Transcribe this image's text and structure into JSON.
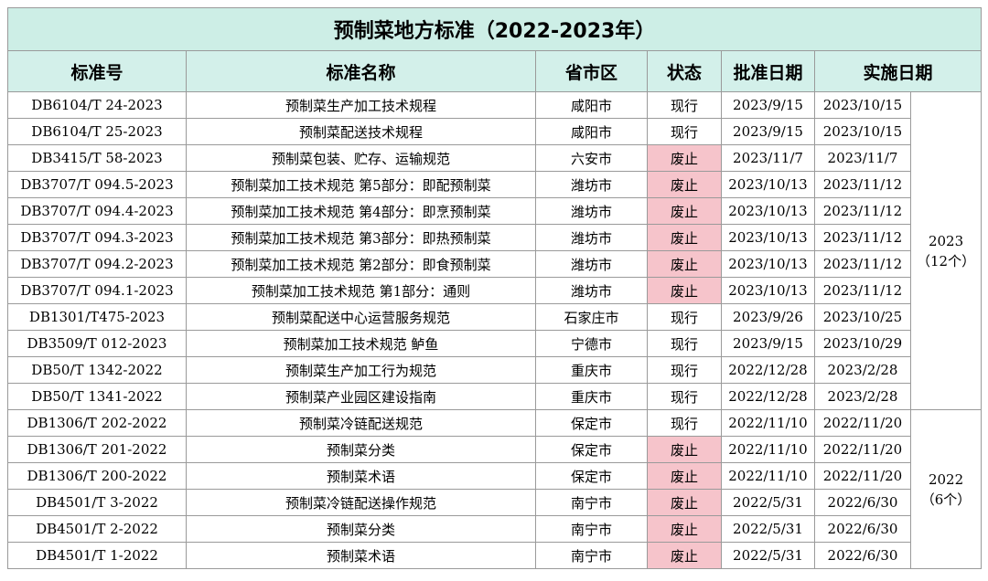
{
  "title": "预制菜地方标准（2022-2023年）",
  "table": {
    "headers": [
      "标准号",
      "标准名称",
      "省市区",
      "状态",
      "批准日期",
      "实施日期"
    ],
    "status_colors": {
      "废止": "#f6c4cb"
    },
    "rows": [
      [
        "DB6104/T 24-2023",
        "预制菜生产加工技术规程",
        "咸阳市",
        "现行",
        "2023/9/15",
        "2023/10/15"
      ],
      [
        "DB6104/T 25-2023",
        "预制菜配送技术规程",
        "咸阳市",
        "现行",
        "2023/9/15",
        "2023/10/15"
      ],
      [
        "DB3415/T 58-2023",
        "预制菜包装、贮存、运输规范",
        "六安市",
        "废止",
        "2023/11/7",
        "2023/11/7"
      ],
      [
        "DB3707/T 094.5-2023",
        "预制菜加工技术规范 第5部分：即配预制菜",
        "潍坊市",
        "废止",
        "2023/10/13",
        "2023/11/12"
      ],
      [
        "DB3707/T 094.4-2023",
        "预制菜加工技术规范 第4部分：即烹预制菜",
        "潍坊市",
        "废止",
        "2023/10/13",
        "2023/11/12"
      ],
      [
        "DB3707/T 094.3-2023",
        "预制菜加工技术规范 第3部分：即热预制菜",
        "潍坊市",
        "废止",
        "2023/10/13",
        "2023/11/12"
      ],
      [
        "DB3707/T 094.2-2023",
        "预制菜加工技术规范 第2部分：即食预制菜",
        "潍坊市",
        "废止",
        "2023/10/13",
        "2023/11/12"
      ],
      [
        "DB3707/T 094.1-2023",
        "预制菜加工技术规范 第1部分：通则",
        "潍坊市",
        "废止",
        "2023/10/13",
        "2023/11/12"
      ],
      [
        "DB1301/T475-2023",
        "预制菜配送中心运营服务规范",
        "石家庄市",
        "现行",
        "2023/9/26",
        "2023/10/25"
      ],
      [
        "DB3509/T 012-2023",
        "预制菜加工技术规范 鲈鱼",
        "宁德市",
        "现行",
        "2023/9/15",
        "2023/10/29"
      ],
      [
        "DB50/T 1342-2022",
        "预制菜生产加工行为规范",
        "重庆市",
        "现行",
        "2022/12/28",
        "2023/2/28"
      ],
      [
        "DB50/T 1341-2022",
        "预制菜产业园区建设指南",
        "重庆市",
        "现行",
        "2022/12/28",
        "2023/2/28"
      ],
      [
        "DB1306/T 202-2022",
        "预制菜冷链配送规范",
        "保定市",
        "现行",
        "2022/11/10",
        "2022/11/20"
      ],
      [
        "DB1306/T 201-2022",
        "预制菜分类",
        "保定市",
        "废止",
        "2022/11/10",
        "2022/11/20"
      ],
      [
        "DB1306/T 200-2022",
        "预制菜术语",
        "保定市",
        "废止",
        "2022/11/10",
        "2022/11/20"
      ],
      [
        "DB4501/T 3-2022",
        "预制菜冷链配送操作规范",
        "南宁市",
        "废止",
        "2022/5/31",
        "2022/6/30"
      ],
      [
        "DB4501/T 2-2022",
        "预制菜分类",
        "南宁市",
        "废止",
        "2022/5/31",
        "2022/6/30"
      ],
      [
        "DB4501/T 1-2022",
        "预制菜术语",
        "南宁市",
        "废止",
        "2022/5/31",
        "2022/6/30"
      ]
    ],
    "groups": [
      {
        "rows": 12,
        "lines": [
          "2023",
          "（12个）"
        ]
      },
      {
        "rows": 6,
        "lines": [
          "2022",
          "（6个）"
        ]
      }
    ]
  }
}
